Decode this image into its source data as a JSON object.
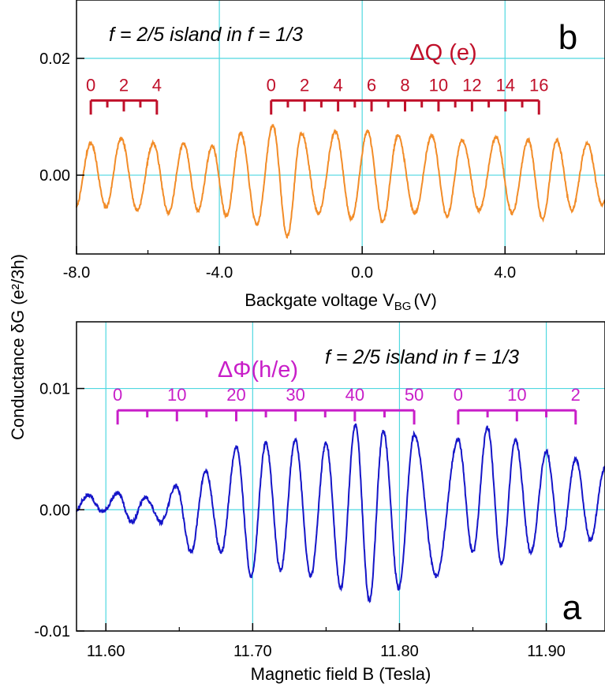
{
  "shared_ylabel": "Conductance  δG (e²/3h)",
  "chart_data": [
    {
      "id": "b",
      "type": "line",
      "panel_label": "b",
      "title": "f = 2/5 island in f = 1/3",
      "xlabel": "Backgate voltage  V_BG (V)",
      "xlabel_parts": {
        "main": "Backgate voltage  V",
        "sub": "BG",
        "unit": "(V)"
      },
      "xlim": [
        -8.0,
        6.8
      ],
      "ylim": [
        -0.0135,
        0.03
      ],
      "x_ticks": [
        -8.0,
        -4.0,
        0.0,
        4.0
      ],
      "x_tick_labels": [
        "-8.0",
        "-4.0",
        "0.0",
        "4.0"
      ],
      "x_minor_ticks": [
        -6.0,
        -2.0,
        2.0,
        6.0
      ],
      "y_ticks": [
        0.0,
        0.02
      ],
      "y_tick_labels": [
        "0.00",
        "0.02"
      ],
      "grid_x": [
        -4.0,
        0.0,
        4.0
      ],
      "grid_y": [
        0.0,
        0.02
      ],
      "line_color": "#F28C28",
      "series": [
        {
          "peaks_x": [
            -7.6,
            -6.75,
            -5.85,
            -5.0,
            -4.2,
            -3.4,
            -2.5,
            -1.7,
            -0.75,
            0.15,
            1.0,
            1.95,
            2.8,
            3.75,
            4.65,
            5.45,
            6.3
          ],
          "amplitude": [
            0.0055,
            0.0062,
            0.0055,
            0.0055,
            0.005,
            0.0072,
            0.0085,
            0.0072,
            0.0075,
            0.0075,
            0.0068,
            0.0068,
            0.006,
            0.0065,
            0.006,
            0.006,
            0.0055
          ],
          "trough_depth": [
            -0.0055,
            -0.006,
            -0.0065,
            -0.006,
            -0.007,
            -0.0085,
            -0.0105,
            -0.0065,
            -0.0075,
            -0.008,
            -0.0065,
            -0.007,
            -0.006,
            -0.0065,
            -0.0075,
            -0.006,
            -0.005
          ]
        }
      ],
      "annotation_color": "#C0102A",
      "annotation_title": "ΔQ (e)",
      "scale_bars": [
        {
          "x_start": -7.6,
          "x_end": -5.75,
          "y": 0.0128,
          "tick_count": 5,
          "labels": [
            "0",
            "2",
            "4"
          ]
        },
        {
          "x_start": -2.55,
          "x_end": 4.95,
          "y": 0.0128,
          "tick_count": 17,
          "labels": [
            "0",
            "2",
            "4",
            "6",
            "8",
            "10",
            "12",
            "14",
            "16"
          ]
        }
      ]
    },
    {
      "id": "a",
      "type": "line",
      "panel_label": "a",
      "title": "f = 2/5 island in f = 1/3",
      "xlabel": "Magnetic field  B (Tesla)",
      "xlim": [
        11.58,
        11.94
      ],
      "ylim": [
        -0.01,
        0.0155
      ],
      "x_ticks": [
        11.6,
        11.7,
        11.8,
        11.9
      ],
      "x_tick_labels": [
        "11.60",
        "11.70",
        "11.80",
        "11.90"
      ],
      "x_minor_ticks": [
        11.65,
        11.75,
        11.85
      ],
      "y_ticks": [
        -0.01,
        0.0,
        0.01
      ],
      "y_tick_labels": [
        "-0.01",
        "0.00",
        "0.01"
      ],
      "grid_x": [
        11.6,
        11.7,
        11.8,
        11.9
      ],
      "grid_y": [
        0.0,
        0.01
      ],
      "line_color": "#1515C8",
      "series": [
        {
          "peaks_x": [
            11.588,
            11.608,
            11.627,
            11.648,
            11.668,
            11.689,
            11.709,
            11.729,
            11.75,
            11.77,
            11.789,
            11.81,
            11.84,
            11.86,
            11.879,
            11.9,
            11.92,
            11.94
          ],
          "amplitude": [
            0.0012,
            0.0014,
            0.001,
            0.002,
            0.0032,
            0.0052,
            0.0055,
            0.0058,
            0.0055,
            0.007,
            0.0065,
            0.0062,
            0.0058,
            0.0068,
            0.0058,
            0.0048,
            0.0042,
            0.0035
          ],
          "trough_depth": [
            -0.0002,
            -0.001,
            -0.001,
            -0.0035,
            -0.0035,
            -0.0055,
            -0.005,
            -0.0055,
            -0.0065,
            -0.0075,
            -0.0065,
            -0.0055,
            -0.0035,
            -0.0045,
            -0.0035,
            -0.003,
            -0.0025,
            -0.002
          ]
        }
      ],
      "annotation_color": "#C81EC8",
      "annotation_title": "ΔΦ(h/e)",
      "scale_bars": [
        {
          "x_start": 11.608,
          "x_end": 11.81,
          "y": 0.0082,
          "tick_count": 11,
          "labels": [
            "0",
            "10",
            "20",
            "30",
            "40",
            "50"
          ]
        },
        {
          "x_start": 11.84,
          "x_end": 11.92,
          "y": 0.0082,
          "tick_count": 5,
          "labels": [
            "0",
            "10",
            "2"
          ]
        }
      ]
    }
  ]
}
